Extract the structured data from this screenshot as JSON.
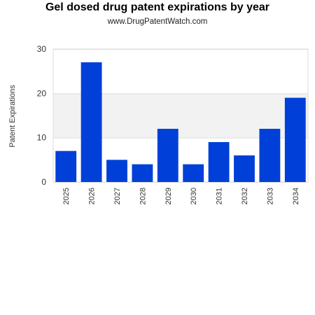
{
  "header": {
    "title": "Gel dosed drug patent expirations by year",
    "subtitle": "www.DrugPatentWatch.com"
  },
  "colors": {
    "bar": "#0040d8",
    "band": "#f2f2f2",
    "grid": "#dddddd",
    "axis": "#cccccc"
  },
  "chart_data": {
    "type": "bar",
    "title": "Gel dosed drug patent expirations by year",
    "subtitle": "www.DrugPatentWatch.com",
    "xlabel": "",
    "ylabel": "Patent Expirations",
    "categories": [
      "2025",
      "2026",
      "2027",
      "2028",
      "2029",
      "2030",
      "2031",
      "2032",
      "2033",
      "2034"
    ],
    "values": [
      7,
      27,
      5,
      4,
      12,
      4,
      9,
      6,
      12,
      19
    ],
    "ylim": [
      0,
      30
    ],
    "yticks": [
      0,
      10,
      20,
      30
    ],
    "grid": true,
    "legend": "none"
  }
}
